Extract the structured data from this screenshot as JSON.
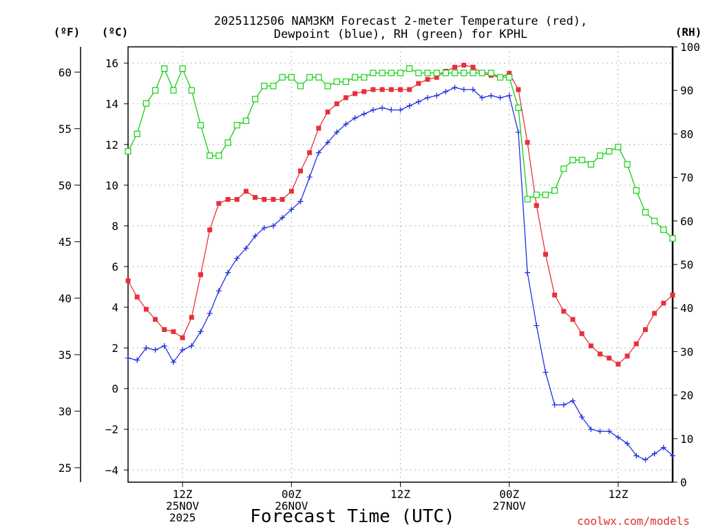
{
  "chart_data": {
    "type": "line",
    "title_lines": [
      "2025112506 NAM3KM Forecast 2-meter Temperature (red),",
      "Dewpoint (blue), RH (green) for KPHL"
    ],
    "xlabel": "Forecast Time (UTC)",
    "credit": "coolwx.com/models",
    "units": {
      "fahrenheit": "(ºF)",
      "celsius": "(ºC)",
      "rh": "(RH)"
    },
    "x_hours": [
      0,
      1,
      2,
      3,
      4,
      5,
      6,
      7,
      8,
      9,
      10,
      11,
      12,
      13,
      14,
      15,
      16,
      17,
      18,
      19,
      20,
      21,
      22,
      23,
      24,
      25,
      26,
      27,
      28,
      29,
      30,
      31,
      32,
      33,
      34,
      35,
      36,
      37,
      38,
      39,
      40,
      41,
      42,
      43,
      44,
      45,
      46,
      47,
      48,
      49,
      50,
      51,
      52,
      53,
      54,
      55,
      56,
      57,
      58,
      59,
      60
    ],
    "x_ticks": [
      {
        "hour": 6,
        "lines": [
          "12Z",
          "25NOV",
          "2025"
        ]
      },
      {
        "hour": 18,
        "lines": [
          "00Z",
          "26NOV"
        ]
      },
      {
        "hour": 30,
        "lines": [
          "12Z"
        ]
      },
      {
        "hour": 42,
        "lines": [
          "00Z",
          "27NOV"
        ]
      },
      {
        "hour": 54,
        "lines": [
          "12Z"
        ]
      }
    ],
    "xlim": [
      0,
      60
    ],
    "left_axis_celsius": {
      "ylim": [
        -4.6,
        16.8
      ],
      "ticks": [
        "16",
        "14",
        "12",
        "10",
        "8",
        "6",
        "4",
        "2",
        "0",
        "−2",
        "−4"
      ],
      "tick_values": [
        16,
        14,
        12,
        10,
        8,
        6,
        4,
        2,
        0,
        -2,
        -4
      ]
    },
    "left_axis_fahrenheit": {
      "ticks": [
        "60",
        "55",
        "50",
        "45",
        "40",
        "35",
        "30",
        "25"
      ],
      "tick_values": [
        60,
        55,
        50,
        45,
        40,
        35,
        30,
        25
      ]
    },
    "right_axis_rh": {
      "ylim": [
        0,
        100
      ],
      "ticks": [
        "100",
        "90",
        "80",
        "70",
        "60",
        "50",
        "40",
        "30",
        "20",
        "10",
        "0"
      ],
      "tick_values": [
        100,
        90,
        80,
        70,
        60,
        50,
        40,
        30,
        20,
        10,
        0
      ]
    },
    "series": [
      {
        "name": "2-meter Temperature",
        "units": "C",
        "color": "#e8303a",
        "marker": "filled-square",
        "values": [
          5.3,
          4.5,
          3.9,
          3.4,
          2.9,
          2.8,
          2.5,
          3.5,
          5.6,
          7.8,
          9.1,
          9.3,
          9.3,
          9.7,
          9.4,
          9.3,
          9.3,
          9.3,
          9.7,
          10.7,
          11.6,
          12.8,
          13.6,
          14.0,
          14.3,
          14.5,
          14.6,
          14.7,
          14.7,
          14.7,
          14.7,
          14.7,
          15.0,
          15.2,
          15.3,
          15.6,
          15.8,
          15.9,
          15.8,
          15.5,
          15.4,
          15.3,
          15.5,
          14.7,
          12.1,
          9.0,
          6.6,
          4.6,
          3.8,
          3.4,
          2.7,
          2.1,
          1.7,
          1.5,
          1.2,
          1.6,
          2.2,
          2.9,
          3.7,
          4.2,
          4.6
        ]
      },
      {
        "name": "Dewpoint",
        "units": "C",
        "color": "#2030e0",
        "marker": "plus",
        "values": [
          1.5,
          1.4,
          2.0,
          1.9,
          2.1,
          1.3,
          1.9,
          2.1,
          2.8,
          3.7,
          4.8,
          5.7,
          6.4,
          6.9,
          7.5,
          7.9,
          8.0,
          8.4,
          8.8,
          9.2,
          10.4,
          11.6,
          12.1,
          12.6,
          13.0,
          13.3,
          13.5,
          13.7,
          13.8,
          13.7,
          13.7,
          13.9,
          14.1,
          14.3,
          14.4,
          14.6,
          14.8,
          14.7,
          14.7,
          14.3,
          14.4,
          14.3,
          14.4,
          12.6,
          5.7,
          3.1,
          0.8,
          -0.8,
          -0.8,
          -0.6,
          -1.4,
          -2.0,
          -2.1,
          -2.1,
          -2.4,
          -2.7,
          -3.3,
          -3.5,
          -3.2,
          -2.9,
          -3.3
        ]
      },
      {
        "name": "RH",
        "units": "%",
        "color": "#10d010",
        "marker": "open-square",
        "values": [
          76,
          80,
          87,
          90,
          95,
          90,
          95,
          90,
          82,
          75,
          75,
          78,
          82,
          83,
          88,
          91,
          91,
          93,
          93,
          91,
          93,
          93,
          91,
          92,
          92,
          93,
          93,
          94,
          94,
          94,
          94,
          95,
          94,
          94,
          94,
          94,
          94,
          94,
          94,
          94,
          94,
          93,
          93,
          86,
          65,
          66,
          66,
          67,
          72,
          74,
          74,
          73,
          75,
          76,
          77,
          73,
          67,
          62,
          60,
          58,
          56
        ]
      }
    ]
  }
}
